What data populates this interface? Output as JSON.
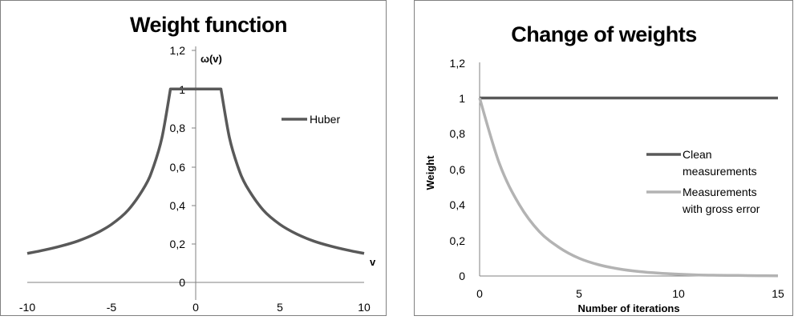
{
  "colors": {
    "huber": "#595959",
    "clean": "#595959",
    "gross": "#b3b3b3",
    "axis": "#808080",
    "border": "#808080",
    "background": "#ffffff"
  },
  "chart_data": [
    {
      "type": "line",
      "title": "Weight function",
      "xlabel": "v",
      "ylabel": "ω(v)",
      "xlim": [
        -10,
        10
      ],
      "ylim": [
        0,
        1.2
      ],
      "x_ticks": [
        "-10",
        "-5",
        "0",
        "5",
        "10"
      ],
      "y_ticks": [
        "0",
        "0,2",
        "0,4",
        "0,6",
        "0,8",
        "1",
        "1,2"
      ],
      "grid": false,
      "legend_position": "right",
      "series": [
        {
          "name": "Huber",
          "x": [
            -10,
            -9,
            -8,
            -7,
            -6,
            -5,
            -4,
            -3,
            -2.5,
            -2,
            -1.5,
            0,
            1.5,
            2,
            2.5,
            3,
            4,
            5,
            6,
            7,
            8,
            9,
            10
          ],
          "y": [
            0.15,
            0.167,
            0.188,
            0.214,
            0.25,
            0.3,
            0.375,
            0.5,
            0.6,
            0.75,
            1,
            1,
            1,
            0.75,
            0.6,
            0.5,
            0.375,
            0.3,
            0.25,
            0.214,
            0.188,
            0.167,
            0.15
          ]
        }
      ]
    },
    {
      "type": "line",
      "title": "Change of weights",
      "xlabel": "Number of iterations",
      "ylabel": "Weight",
      "xlim": [
        0,
        15
      ],
      "ylim": [
        0,
        1.2
      ],
      "x_ticks": [
        "0",
        "5",
        "10",
        "15"
      ],
      "y_ticks": [
        "0",
        "0,2",
        "0,4",
        "0,6",
        "0,8",
        "1",
        "1,2"
      ],
      "grid": false,
      "legend_position": "right",
      "series": [
        {
          "name": "Clean measurements",
          "legend_lines": [
            "Clean",
            "measurements"
          ],
          "x": [
            0,
            15
          ],
          "y": [
            1,
            1
          ]
        },
        {
          "name": "Measurements with gross error",
          "legend_lines": [
            "Measurements",
            "with gross error"
          ],
          "x": [
            0,
            1,
            2,
            3,
            4,
            5,
            6,
            7,
            8,
            9,
            10,
            11,
            12,
            13,
            14,
            15
          ],
          "y": [
            1,
            0.63,
            0.4,
            0.25,
            0.16,
            0.1,
            0.063,
            0.04,
            0.025,
            0.016,
            0.01,
            0.006,
            0.004,
            0.003,
            0.002,
            0.001
          ]
        }
      ]
    }
  ]
}
